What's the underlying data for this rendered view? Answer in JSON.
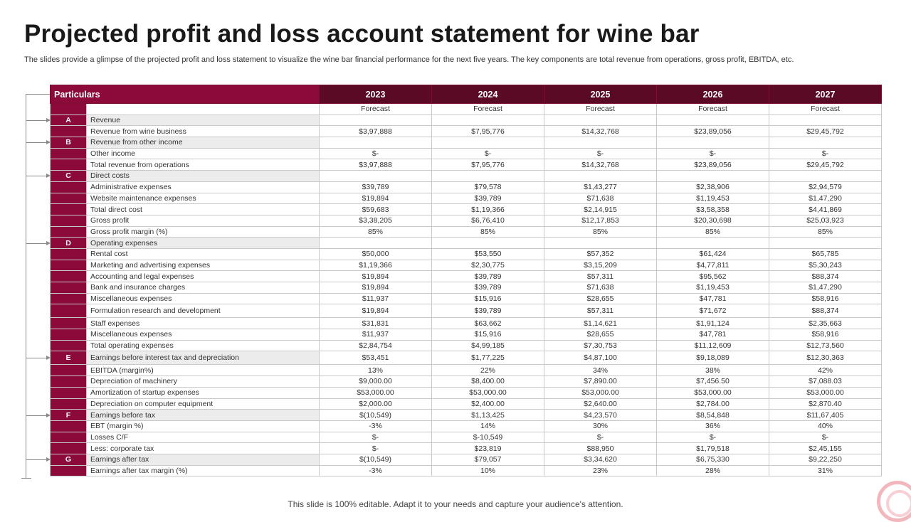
{
  "title": "Projected profit and loss account statement for wine bar",
  "subtitle": "The slides provide a glimpse of the projected profit and loss statement to visualize the wine bar financial performance for the next five years. The key components are total revenue from operations, gross profit, EBITDA, etc.",
  "footer": "This slide is 100% editable. Adapt it to your needs and capture your audience's attention.",
  "table": {
    "header_label": "Particulars",
    "years": [
      "2023",
      "2024",
      "2025",
      "2026",
      "2027"
    ],
    "subheader": [
      "Forecast",
      "Forecast",
      "Forecast",
      "Forecast",
      "Forecast"
    ],
    "rows": [
      {
        "sec": "A",
        "label": "Revenue",
        "grey": true,
        "v": [
          "",
          "",
          "",
          "",
          ""
        ]
      },
      {
        "sec": "",
        "label": "Revenue from wine business",
        "v": [
          "$3,97,888",
          "$7,95,776",
          "$14,32,768",
          "$23,89,056",
          "$29,45,792"
        ]
      },
      {
        "sec": "B",
        "label": "Revenue from other income",
        "grey": true,
        "v": [
          "",
          "",
          "",
          "",
          ""
        ]
      },
      {
        "sec": "",
        "label": "Other income",
        "v": [
          "$-",
          "$-",
          "$-",
          "$-",
          "$-"
        ]
      },
      {
        "sec": "",
        "label": "Total revenue from operations",
        "v": [
          "$3,97,888",
          "$7,95,776",
          "$14,32,768",
          "$23,89,056",
          "$29,45,792"
        ]
      },
      {
        "sec": "C",
        "label": "Direct costs",
        "grey": true,
        "v": [
          "",
          "",
          "",
          "",
          ""
        ]
      },
      {
        "sec": "",
        "label": "Administrative expenses",
        "v": [
          "$39,789",
          "$79,578",
          "$1,43,277",
          "$2,38,906",
          "$2,94,579"
        ]
      },
      {
        "sec": "",
        "label": "Website maintenance expenses",
        "v": [
          "$19,894",
          "$39,789",
          "$71,638",
          "$1,19,453",
          "$1,47,290"
        ]
      },
      {
        "sec": "",
        "label": " Total direct cost",
        "v": [
          "$59,683",
          "$1,19,366",
          "$2,14,915",
          "$3,58,358",
          "$4,41,869"
        ]
      },
      {
        "sec": "",
        "label": "Gross profit",
        "v": [
          "$3,38,205",
          "$6,76,410",
          "$12,17,853",
          "$20,30,698",
          "$25,03,923"
        ]
      },
      {
        "sec": "",
        "label": "Gross profit margin (%)",
        "v": [
          "85%",
          "85%",
          "85%",
          "85%",
          "85%"
        ]
      },
      {
        "sec": "D",
        "label": "Operating expenses",
        "grey": true,
        "v": [
          "",
          "",
          "",
          "",
          ""
        ]
      },
      {
        "sec": "",
        "label": "Rental cost",
        "v": [
          "$50,000",
          "$53,550",
          "$57,352",
          "$61,424",
          "$65,785"
        ]
      },
      {
        "sec": "",
        "label": "Marketing and advertising expenses",
        "v": [
          "$1,19,366",
          "$2,30,775",
          "$3,15,209",
          "$4,77,811",
          "$5,30,243"
        ]
      },
      {
        "sec": "",
        "label": "Accounting and legal expenses",
        "v": [
          "$19,894",
          "$39,789",
          "$57,311",
          "$95,562",
          "$88,374"
        ]
      },
      {
        "sec": "",
        "label": "Bank and insurance charges",
        "v": [
          "$19,894",
          "$39,789",
          "$71,638",
          "$1,19,453",
          "$1,47,290"
        ]
      },
      {
        "sec": "",
        "label": "Miscellaneous expenses",
        "v": [
          "$11,937",
          "$15,916",
          "$28,655",
          "$47,781",
          "$58,916"
        ]
      },
      {
        "sec": "",
        "label": "Formulation research and development",
        "tall": true,
        "v": [
          "$19,894",
          "$39,789",
          "$57,311",
          "$71,672",
          "$88,374"
        ]
      },
      {
        "sec": "",
        "label": "Staff expenses",
        "v": [
          "$31,831",
          "$63,662",
          "$1,14,621",
          "$1,91,124",
          "$2,35,663"
        ]
      },
      {
        "sec": "",
        "label": "Miscellaneous expenses",
        "v": [
          "$11,937",
          "$15,916",
          "$28,655",
          "$47,781",
          "$58,916"
        ]
      },
      {
        "sec": "",
        "label": "Total operating expenses",
        "v": [
          "$2,84,754",
          "$4,99,185",
          "$7,30,753",
          "$11,12,609",
          "$12,73,560"
        ]
      },
      {
        "sec": "E",
        "label": "Earnings before interest tax and depreciation",
        "grey": true,
        "tall": true,
        "v": [
          "$53,451",
          "$1,77,225",
          "$4,87,100",
          "$9,18,089",
          "$12,30,363"
        ]
      },
      {
        "sec": "",
        "label": "EBITDA  (margin%)",
        "v": [
          "13%",
          "22%",
          "34%",
          "38%",
          "42%"
        ]
      },
      {
        "sec": "",
        "label": "Depreciation of machinery",
        "v": [
          "$9,000.00",
          "$8,400.00",
          "$7,890.00",
          "$7,456.50",
          "$7,088.03"
        ]
      },
      {
        "sec": "",
        "label": "Amortization of startup expenses",
        "v": [
          "$53,000.00",
          "$53,000.00",
          "$53,000.00",
          "$53,000.00",
          "$53,000.00"
        ]
      },
      {
        "sec": "",
        "label": "Depreciation on computer equipment",
        "v": [
          "$2,000.00",
          "$2,400.00",
          "$2,640.00",
          "$2,784.00",
          "$2,870.40"
        ]
      },
      {
        "sec": "F",
        "label": "Earnings before tax",
        "grey": true,
        "v": [
          "$(10,549)",
          "$1,13,425",
          "$4,23,570",
          "$8,54,848",
          "$11,67,405"
        ]
      },
      {
        "sec": "",
        "label": "EBT  (margin %)",
        "v": [
          "-3%",
          "14%",
          "30%",
          "36%",
          "40%"
        ]
      },
      {
        "sec": "",
        "label": "Losses C/F",
        "v": [
          "$-",
          "$-10,549",
          "$-",
          "$-",
          "$-"
        ]
      },
      {
        "sec": "",
        "label": "Less: corporate tax",
        "v": [
          "$-",
          "$23,819",
          "$88,950",
          "$1,79,518",
          "$2,45,155"
        ]
      },
      {
        "sec": "G",
        "label": "Earnings after tax",
        "grey": true,
        "v": [
          "$(10,549)",
          "$79,057",
          "$3,34,620",
          "$6,75,330",
          "$9,22,250"
        ]
      },
      {
        "sec": "",
        "label": "Earnings after tax margin  (%)",
        "v": [
          "-3%",
          "10%",
          "23%",
          "28%",
          "31%"
        ]
      }
    ]
  }
}
